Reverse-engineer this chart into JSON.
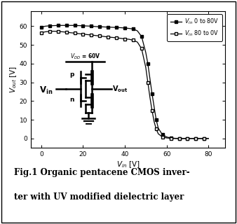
{
  "xlabel": "V_{in} [V]",
  "ylabel": "V_{out} [V]",
  "xlim": [
    -5,
    88
  ],
  "ylim": [
    -5,
    68
  ],
  "xticks": [
    0,
    20,
    40,
    60,
    80
  ],
  "yticks": [
    0,
    10,
    20,
    30,
    40,
    50,
    60
  ],
  "legend1": "$V_{in}$ 0 to 80V",
  "legend2": "$V_{in}$ 80 to 0V",
  "vdd_label": "V_{DD} = 60V",
  "curve1_x": [
    0,
    2,
    4,
    6,
    8,
    10,
    12,
    14,
    16,
    18,
    20,
    22,
    24,
    26,
    28,
    30,
    32,
    34,
    36,
    38,
    40,
    42,
    44,
    46,
    48,
    50,
    51,
    52,
    53,
    54,
    55,
    56,
    58,
    60,
    62,
    64,
    66,
    68,
    70,
    72,
    74,
    76,
    78,
    80
  ],
  "curve1_y": [
    59.5,
    60.0,
    60.2,
    60.3,
    60.4,
    60.4,
    60.4,
    60.4,
    60.4,
    60.3,
    60.2,
    60.1,
    60.0,
    59.8,
    59.7,
    59.6,
    59.5,
    59.4,
    59.3,
    59.2,
    59.0,
    58.8,
    58.5,
    57.5,
    54.5,
    46.0,
    40.0,
    32.0,
    24.0,
    17.0,
    10.0,
    5.5,
    2.0,
    0.8,
    0.3,
    0.1,
    0.05,
    0.0,
    0.0,
    0.0,
    0.0,
    0.0,
    0.0,
    0.0
  ],
  "curve2_x": [
    0,
    2,
    4,
    6,
    8,
    10,
    12,
    14,
    16,
    18,
    20,
    22,
    24,
    26,
    28,
    30,
    32,
    34,
    36,
    38,
    40,
    42,
    44,
    46,
    48,
    50,
    51,
    52,
    53,
    54,
    55,
    56,
    58,
    60,
    62,
    64,
    66,
    68,
    70,
    72,
    74,
    76,
    78,
    80
  ],
  "curve2_y": [
    56.5,
    57.0,
    57.2,
    57.3,
    57.2,
    57.0,
    56.8,
    56.5,
    56.3,
    56.0,
    55.8,
    55.5,
    55.3,
    55.0,
    54.8,
    54.5,
    54.2,
    54.0,
    53.8,
    53.5,
    53.2,
    53.0,
    52.5,
    51.5,
    48.0,
    38.0,
    30.0,
    22.0,
    15.0,
    9.0,
    5.0,
    2.5,
    0.8,
    0.3,
    0.1,
    0.0,
    0.0,
    0.0,
    0.0,
    0.0,
    0.0,
    0.0,
    0.0,
    0.0
  ],
  "caption_line1": "Fig.1 Organic pentacene CMOS inver-",
  "caption_line2": "ter with UV modified dielectric layer",
  "bg_color": "#ffffff"
}
